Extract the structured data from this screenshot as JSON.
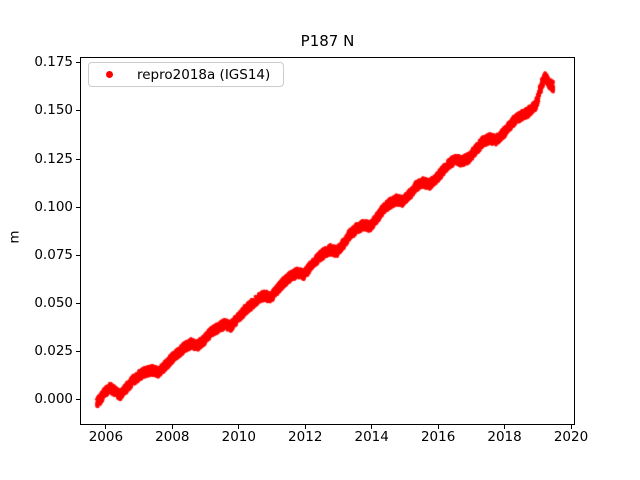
{
  "figure": {
    "title": "P187 N",
    "y_axis_label": "m"
  },
  "legend": {
    "entries": [
      {
        "label": "repro2018a (IGS14)",
        "marker": "dot",
        "color": "#ff0000"
      }
    ]
  },
  "colors": {
    "series": "#ff0000",
    "background": "#ffffff",
    "axes": "#000000",
    "legend_border": "#cccccc"
  },
  "chart_data": {
    "type": "scatter",
    "title": "P187 N",
    "xlabel": "",
    "ylabel": "m",
    "xlim": [
      2005.22,
      2020.12
    ],
    "ylim": [
      -0.013,
      0.178
    ],
    "xticks": [
      2006,
      2008,
      2010,
      2012,
      2014,
      2016,
      2018,
      2020
    ],
    "yticks": [
      0.0,
      0.025,
      0.05,
      0.075,
      0.1,
      0.125,
      0.15,
      0.175
    ],
    "ytick_decimals": 3,
    "grid": false,
    "legend_position": "upper left",
    "series": [
      {
        "name": "repro2018a (IGS14)",
        "color": "#ff0000",
        "marker": "dot",
        "marker_size_px": 3,
        "scatter_band_halfwidth_m": 0.0026,
        "x": [
          2005.7,
          2005.8,
          2005.95,
          2006.1,
          2006.25,
          2006.4,
          2006.55,
          2006.75,
          2006.95,
          2007.15,
          2007.35,
          2007.55,
          2007.75,
          2007.95,
          2008.15,
          2008.35,
          2008.55,
          2008.75,
          2008.95,
          2009.15,
          2009.35,
          2009.55,
          2009.75,
          2009.95,
          2010.15,
          2010.35,
          2010.55,
          2010.75,
          2010.95,
          2011.15,
          2011.35,
          2011.55,
          2011.75,
          2011.95,
          2012.15,
          2012.35,
          2012.55,
          2012.75,
          2012.95,
          2013.15,
          2013.35,
          2013.55,
          2013.75,
          2013.95,
          2014.15,
          2014.35,
          2014.55,
          2014.75,
          2014.95,
          2015.15,
          2015.35,
          2015.55,
          2015.75,
          2015.95,
          2016.15,
          2016.35,
          2016.55,
          2016.75,
          2016.95,
          2017.15,
          2017.35,
          2017.55,
          2017.75,
          2017.95,
          2018.15,
          2018.35,
          2018.55,
          2018.75,
          2018.95,
          2019.05,
          2019.15,
          2019.25,
          2019.35,
          2019.5
        ],
        "y": [
          -0.002,
          0.0,
          0.004,
          0.006,
          0.004,
          0.002,
          0.005,
          0.009,
          0.012,
          0.014,
          0.015,
          0.014,
          0.017,
          0.021,
          0.024,
          0.027,
          0.029,
          0.028,
          0.031,
          0.035,
          0.037,
          0.039,
          0.038,
          0.042,
          0.046,
          0.049,
          0.052,
          0.054,
          0.053,
          0.057,
          0.061,
          0.064,
          0.066,
          0.065,
          0.069,
          0.073,
          0.076,
          0.078,
          0.077,
          0.081,
          0.086,
          0.089,
          0.091,
          0.09,
          0.094,
          0.099,
          0.102,
          0.104,
          0.103,
          0.107,
          0.111,
          0.113,
          0.112,
          0.115,
          0.119,
          0.123,
          0.125,
          0.124,
          0.126,
          0.13,
          0.134,
          0.136,
          0.135,
          0.138,
          0.142,
          0.146,
          0.148,
          0.15,
          0.153,
          0.158,
          0.165,
          0.168,
          0.165,
          0.163
        ]
      }
    ]
  }
}
